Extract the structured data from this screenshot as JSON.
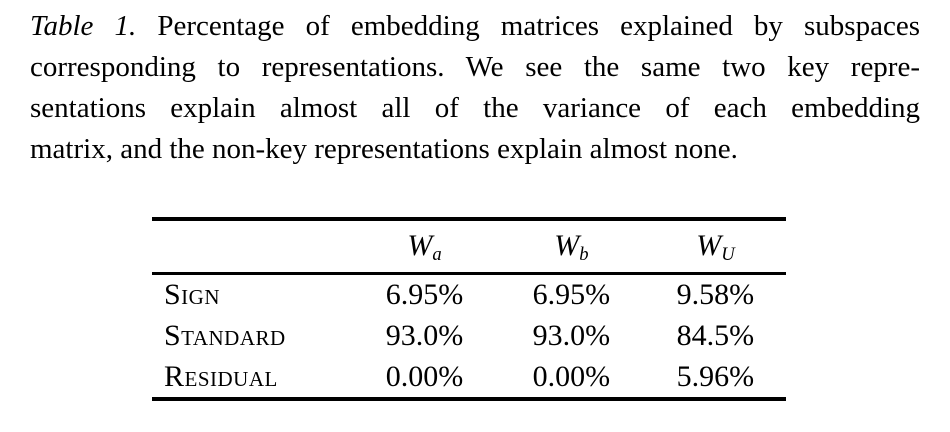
{
  "caption": {
    "label": "Table 1.",
    "lines": {
      "line1_rest": "Percentage of embedding matrices explained by subspaces",
      "line2": "corresponding to representations. We see the same two key repre-",
      "line3": "sentations explain almost all of the variance of each embedding",
      "line4": "matrix, and the non-key representations explain almost none."
    }
  },
  "table": {
    "columns": [
      {
        "base": "W",
        "sub": "a"
      },
      {
        "base": "W",
        "sub": "b"
      },
      {
        "base": "W",
        "sub": "U"
      }
    ],
    "rows": [
      {
        "label": "Sign",
        "values": [
          "6.95%",
          "6.95%",
          "9.58%"
        ]
      },
      {
        "label": "Standard",
        "values": [
          "93.0%",
          "93.0%",
          "84.5%"
        ]
      },
      {
        "label": "Residual",
        "values": [
          "0.00%",
          "0.00%",
          "5.96%"
        ]
      }
    ]
  },
  "colors": {
    "text": "#000000",
    "background": "#ffffff"
  }
}
